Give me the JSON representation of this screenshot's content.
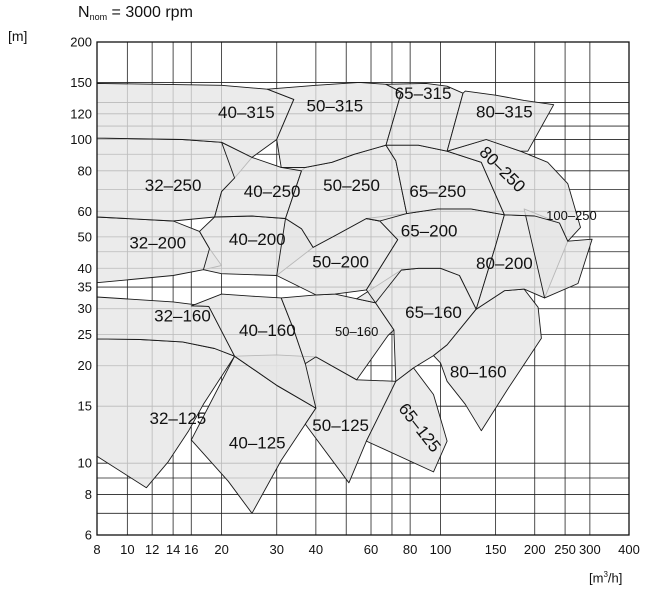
{
  "chart_data": {
    "type": "area",
    "title_main": "N",
    "title_sub": "nom",
    "title_rest": " = 3000 rpm",
    "ylabel": "[m]",
    "xlabel_pre": "[m",
    "xlabel_sup": "3",
    "xlabel_post": "/h]",
    "x_scale": "log",
    "y_scale": "log",
    "xlim": [
      8,
      400
    ],
    "ylim": [
      6,
      200
    ],
    "grid": true,
    "fill_color": "#e6e6e6",
    "line_color": "#1a1a1a",
    "x_ticks": [
      8,
      10,
      12,
      14,
      16,
      20,
      30,
      40,
      60,
      80,
      100,
      150,
      200,
      250,
      300,
      400
    ],
    "x_tick_labels": [
      "8",
      "10",
      "12",
      "14",
      "16",
      "20",
      "30",
      "40",
      "60",
      "80",
      "100",
      "150",
      "200",
      "250",
      "300",
      "400"
    ],
    "y_ticks": [
      6,
      8,
      10,
      15,
      20,
      25,
      30,
      35,
      40,
      50,
      60,
      80,
      100,
      120,
      150,
      200
    ],
    "y_tick_labels": [
      "6",
      "8",
      "10",
      "15",
      "20",
      "25",
      "30",
      "35",
      "40",
      "50",
      "60",
      "80",
      "100",
      "120",
      "150",
      "200"
    ],
    "x_grid": [
      8,
      10,
      12,
      14,
      16,
      20,
      30,
      40,
      50,
      60,
      70,
      80,
      100,
      150,
      200,
      250,
      300,
      400
    ],
    "y_grid": [
      6,
      7,
      8,
      9,
      10,
      15,
      20,
      25,
      30,
      35,
      40,
      45,
      50,
      60,
      70,
      80,
      90,
      100,
      110,
      120,
      130,
      150,
      200
    ],
    "areas": [
      {
        "label": "32–125",
        "label_at": [
          14.5,
          13.8
        ],
        "points": [
          [
            8,
            10.5
          ],
          [
            11.5,
            8.4
          ],
          [
            13.5,
            10.1
          ],
          [
            15.7,
            12.6
          ],
          [
            17.5,
            15.2
          ],
          [
            22,
            21.4
          ],
          [
            19,
            22.6
          ],
          [
            15,
            23.7
          ],
          [
            11,
            24.1
          ],
          [
            8,
            24.2
          ]
        ]
      },
      {
        "label": "40–125",
        "label_at": [
          26,
          11.6
        ],
        "points": [
          [
            16,
            11.8
          ],
          [
            21,
            8.8
          ],
          [
            25,
            7.0
          ],
          [
            31,
            10.2
          ],
          [
            37,
            13.2
          ],
          [
            40,
            14.8
          ],
          [
            30,
            17.4
          ],
          [
            22,
            21.4
          ]
        ]
      },
      {
        "label": "50–125",
        "label_at": [
          48,
          13.1
        ],
        "points": [
          [
            37,
            13.2
          ],
          [
            51,
            8.7
          ],
          [
            58,
            11.7
          ],
          [
            68,
            15.9
          ],
          [
            72,
            17.9
          ],
          [
            54,
            18.1
          ],
          [
            40,
            21.3
          ],
          [
            30,
            21.6
          ],
          [
            22,
            21.4
          ],
          [
            30,
            17.4
          ],
          [
            40,
            14.8
          ]
        ]
      },
      {
        "label": "65–125",
        "label_at": [
          86,
          12.9
        ],
        "rotate": 52,
        "points": [
          [
            58,
            11.7
          ],
          [
            95,
            9.4
          ],
          [
            105,
            11.7
          ],
          [
            95,
            16.3
          ],
          [
            82,
            19.7
          ],
          [
            72,
            17.9
          ]
        ]
      },
      {
        "label": "32–160",
        "label_at": [
          15,
          28.6
        ],
        "points": [
          [
            8,
            32.6
          ],
          [
            14,
            31.5
          ],
          [
            18.2,
            30.5
          ],
          [
            22,
            21.4
          ],
          [
            19,
            22.6
          ],
          [
            15,
            23.7
          ],
          [
            11,
            24.1
          ],
          [
            8,
            24.2
          ]
        ]
      },
      {
        "label": "40–160",
        "label_at": [
          28,
          25.8
        ],
        "points": [
          [
            16,
            30.6
          ],
          [
            18.2,
            30.5
          ],
          [
            22,
            21.4
          ],
          [
            30,
            17.4
          ],
          [
            40,
            14.8
          ],
          [
            37,
            20.3
          ],
          [
            34,
            25.8
          ],
          [
            31,
            32.4
          ],
          [
            25,
            32.8
          ],
          [
            20,
            33.3
          ]
        ]
      },
      {
        "label": "50–160",
        "label_at": [
          54,
          25.8
        ],
        "points": [
          [
            31,
            32.4
          ],
          [
            40,
            33.1
          ],
          [
            46,
            33.3
          ],
          [
            54,
            32.2
          ],
          [
            62,
            31.3
          ],
          [
            71,
            25.8
          ],
          [
            68,
            24.8
          ],
          [
            54,
            18.1
          ],
          [
            40,
            21.3
          ],
          [
            37,
            20.3
          ],
          [
            34,
            25.8
          ]
        ]
      },
      {
        "label": "65–160",
        "label_at": [
          95,
          29.3
        ],
        "points": [
          [
            54,
            32.2
          ],
          [
            62,
            31.3
          ],
          [
            71,
            25.8
          ],
          [
            72,
            17.9
          ],
          [
            82,
            19.7
          ],
          [
            95,
            21.5
          ],
          [
            105,
            23.2
          ],
          [
            130,
            29.9
          ],
          [
            115,
            38.0
          ],
          [
            100,
            40.0
          ],
          [
            85,
            40.0
          ],
          [
            75,
            39.5
          ]
        ]
      },
      {
        "label": "80–160",
        "label_at": [
          132,
          19.2
        ],
        "points": [
          [
            105,
            23.2
          ],
          [
            130,
            29.9
          ],
          [
            160,
            34.1
          ],
          [
            185,
            34.5
          ],
          [
            205,
            30.3
          ],
          [
            210,
            24.3
          ],
          [
            165,
            17.1
          ],
          [
            135,
            12.6
          ],
          [
            120,
            15.2
          ],
          [
            105,
            17.9
          ],
          [
            100,
            20.4
          ],
          [
            95,
            21.5
          ]
        ]
      },
      {
        "label": "32–200",
        "label_at": [
          12.5,
          48.0
        ],
        "points": [
          [
            8,
            57.6
          ],
          [
            14,
            56.0
          ],
          [
            17,
            52.0
          ],
          [
            18.3,
            46.0
          ],
          [
            20,
            40.8
          ],
          [
            17.5,
            39.6
          ],
          [
            14,
            38.0
          ],
          [
            8,
            36.1
          ]
        ]
      },
      {
        "label": "40–200",
        "label_at": [
          26,
          49.2
        ],
        "points": [
          [
            17,
            52.0
          ],
          [
            19,
            57.6
          ],
          [
            25,
            58.0
          ],
          [
            32,
            57.0
          ],
          [
            36,
            53.0
          ],
          [
            39.2,
            46.4
          ],
          [
            30,
            38.0
          ],
          [
            20,
            38.5
          ],
          [
            17.5,
            39.6
          ],
          [
            18.3,
            46.0
          ]
        ]
      },
      {
        "label": "50–200",
        "label_at": [
          48,
          42.0
        ],
        "points": [
          [
            32,
            57.0
          ],
          [
            36,
            53.0
          ],
          [
            39.2,
            46.4
          ],
          [
            47,
            51.0
          ],
          [
            58,
            57.0
          ],
          [
            64,
            56.0
          ],
          [
            73,
            49.0
          ],
          [
            58,
            34.3
          ],
          [
            46,
            33.3
          ],
          [
            40,
            33.1
          ],
          [
            30,
            38.0
          ]
        ]
      },
      {
        "label": "65–200",
        "label_at": [
          92,
          52.4
        ],
        "points": [
          [
            58,
            57.0
          ],
          [
            64,
            56.0
          ],
          [
            73,
            49.0
          ],
          [
            58,
            34.3
          ],
          [
            62,
            31.3
          ],
          [
            75,
            39.5
          ],
          [
            85,
            40.0
          ],
          [
            100,
            40.0
          ],
          [
            115,
            38.0
          ],
          [
            130,
            29.9
          ],
          [
            150,
            47.0
          ],
          [
            160,
            58.5
          ],
          [
            125,
            61.0
          ],
          [
            98,
            61.0
          ],
          [
            78,
            59.0
          ]
        ]
      },
      {
        "label": "80–200",
        "label_at": [
          160,
          41.6
        ],
        "points": [
          [
            130,
            29.9
          ],
          [
            150,
            47.0
          ],
          [
            160,
            58.5
          ],
          [
            200,
            58.0
          ],
          [
            240,
            55.2
          ],
          [
            255,
            48.5
          ],
          [
            215,
            32.4
          ],
          [
            185,
            34.5
          ],
          [
            160,
            34.1
          ]
        ]
      },
      {
        "label": "100–250",
        "label_at": [
          262,
          58.8
        ],
        "points": [
          [
            185,
            61.0
          ],
          [
            240,
            55.2
          ],
          [
            255,
            48.5
          ],
          [
            305,
            49.2
          ],
          [
            275,
            35.9
          ],
          [
            215,
            32.4
          ]
        ]
      },
      {
        "label": "100–250",
        "label_at": [
          250,
          52.4
        ],
        "rotate": 45,
        "hidden": true,
        "points": []
      },
      {
        "label": "32–250",
        "label_at": [
          14,
          72.2
        ],
        "points": [
          [
            8,
            101
          ],
          [
            15,
            100
          ],
          [
            20,
            98.0
          ],
          [
            25,
            88.0
          ],
          [
            22,
            76.0
          ],
          [
            20,
            69.0
          ],
          [
            19,
            57.6
          ],
          [
            14,
            56.0
          ],
          [
            8,
            57.6
          ]
        ]
      },
      {
        "label": "40–250",
        "label_at": [
          29,
          69.3
        ],
        "points": [
          [
            20,
            98.0
          ],
          [
            25,
            88.0
          ],
          [
            31,
            82.0
          ],
          [
            37,
            82.0
          ],
          [
            36,
            80.0
          ],
          [
            32,
            57.0
          ],
          [
            25,
            58.0
          ],
          [
            19,
            57.6
          ],
          [
            20,
            69.0
          ],
          [
            22,
            76.0
          ]
        ]
      },
      {
        "label": "50–250",
        "label_at": [
          52,
          72.2
        ],
        "points": [
          [
            31,
            82.0
          ],
          [
            37,
            82.0
          ],
          [
            45,
            85.0
          ],
          [
            53,
            90.0
          ],
          [
            67,
            96.0
          ],
          [
            72,
            86.0
          ],
          [
            78,
            59.0
          ],
          [
            64,
            56.0
          ],
          [
            58,
            57.0
          ],
          [
            47,
            51.0
          ],
          [
            39.2,
            46.4
          ],
          [
            36,
            53.0
          ],
          [
            32,
            57.0
          ],
          [
            36,
            80.0
          ]
        ]
      },
      {
        "label": "65–250",
        "label_at": [
          98,
          69.3
        ],
        "points": [
          [
            67,
            96.0
          ],
          [
            72,
            86.0
          ],
          [
            78,
            59.0
          ],
          [
            98,
            61.0
          ],
          [
            125,
            61.0
          ],
          [
            160,
            58.5
          ],
          [
            135,
            85.0
          ],
          [
            105,
            92.0
          ],
          [
            85,
            96.0
          ]
        ]
      },
      {
        "label": "80–250",
        "label_at": [
          158,
          81.0
        ],
        "rotate": 45,
        "points": [
          [
            105,
            92.0
          ],
          [
            135,
            85.0
          ],
          [
            160,
            58.5
          ],
          [
            200,
            58.0
          ],
          [
            240,
            55.2
          ],
          [
            255,
            48.5
          ],
          [
            280,
            53.5
          ],
          [
            255,
            73.0
          ],
          [
            220,
            85.0
          ],
          [
            180,
            92.0
          ],
          [
            140,
            100.0
          ]
        ]
      },
      {
        "label": "40–315",
        "label_at": [
          24,
          121.5
        ],
        "points": [
          [
            8,
            149
          ],
          [
            20,
            147
          ],
          [
            28,
            143
          ],
          [
            34,
            133
          ],
          [
            30,
            100
          ],
          [
            25,
            88.0
          ],
          [
            20,
            98.0
          ],
          [
            15,
            100
          ],
          [
            8,
            101
          ]
        ]
      },
      {
        "label": "50–315",
        "label_at": [
          46,
          127.1
        ],
        "points": [
          [
            28,
            143
          ],
          [
            40,
            147
          ],
          [
            55,
            150
          ],
          [
            67,
            148
          ],
          [
            75,
            140
          ],
          [
            67,
            96.0
          ],
          [
            53,
            90.0
          ],
          [
            45,
            85.0
          ],
          [
            37,
            82.0
          ],
          [
            31,
            82.0
          ],
          [
            30,
            100
          ],
          [
            34,
            133
          ]
        ]
      },
      {
        "label": "65–315",
        "label_at": [
          88,
          139.4
        ],
        "points": [
          [
            67,
            148
          ],
          [
            90,
            149
          ],
          [
            105,
            146
          ],
          [
            118,
            139
          ],
          [
            105,
            92.0
          ],
          [
            85,
            96.0
          ],
          [
            67,
            96.0
          ],
          [
            75,
            140
          ]
        ]
      },
      {
        "label": "80–315",
        "label_at": [
          160,
          122.0
        ],
        "points": [
          [
            118,
            139
          ],
          [
            120,
            141
          ],
          [
            150,
            137
          ],
          [
            185,
            132
          ],
          [
            230,
            128
          ],
          [
            190,
            92.0
          ],
          [
            180,
            92.0
          ],
          [
            140,
            100.0
          ],
          [
            105,
            92.0
          ]
        ]
      }
    ]
  }
}
